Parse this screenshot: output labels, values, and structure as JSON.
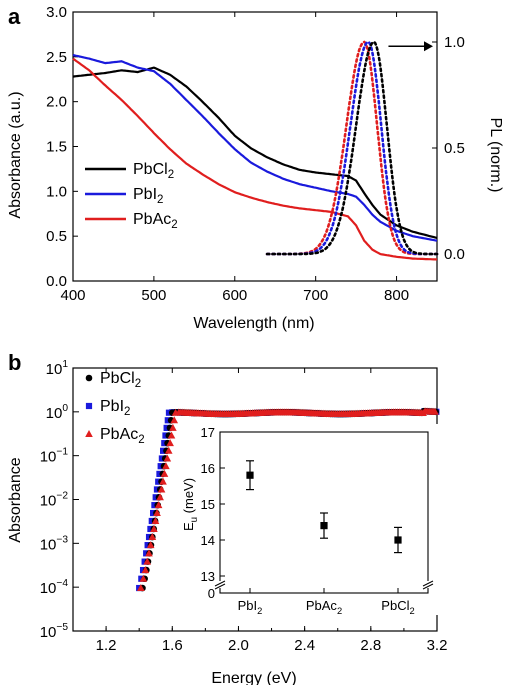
{
  "chart_data": [
    {
      "panel": "a",
      "type": "line",
      "xlabel": "Wavelength (nm)",
      "ylabel": "Absorbance (a.u.)",
      "y2label": "PL (norm.)",
      "xlim": [
        400,
        850
      ],
      "ylim": [
        0,
        3.0
      ],
      "y2lim": [
        0,
        1.0
      ],
      "xticks": [
        "400",
        "500",
        "600",
        "700",
        "800"
      ],
      "yticks": [
        "0.0",
        "0.5",
        "1.0",
        "1.5",
        "2.0",
        "2.5",
        "3.0"
      ],
      "y2ticks": [
        "0.0",
        "0.5",
        "1.0"
      ],
      "legend": [
        "PbCl2",
        "PbI2",
        "PbAc2"
      ],
      "legend_placement": "center-left",
      "colors": {
        "PbCl2": "#000000",
        "PbI2": "#1a1adc",
        "PbAc2": "#e01e1e"
      },
      "absorbance": [
        {
          "name": "PbCl2",
          "x": [
            400,
            420,
            440,
            460,
            480,
            500,
            520,
            540,
            560,
            580,
            600,
            620,
            640,
            660,
            680,
            700,
            720,
            740,
            750,
            760,
            770,
            780,
            800,
            820,
            850
          ],
          "y": [
            2.28,
            2.3,
            2.32,
            2.35,
            2.33,
            2.38,
            2.3,
            2.17,
            2.0,
            1.82,
            1.62,
            1.48,
            1.38,
            1.3,
            1.24,
            1.21,
            1.19,
            1.17,
            1.12,
            0.98,
            0.85,
            0.74,
            0.62,
            0.55,
            0.48
          ]
        },
        {
          "name": "PbI2",
          "x": [
            400,
            420,
            440,
            460,
            480,
            500,
            520,
            540,
            560,
            580,
            600,
            620,
            640,
            660,
            680,
            700,
            720,
            740,
            750,
            760,
            770,
            780,
            800,
            820,
            850
          ],
          "y": [
            2.52,
            2.48,
            2.43,
            2.45,
            2.38,
            2.34,
            2.2,
            2.02,
            1.84,
            1.65,
            1.47,
            1.32,
            1.22,
            1.14,
            1.08,
            1.04,
            1.0,
            0.97,
            0.94,
            0.85,
            0.74,
            0.66,
            0.56,
            0.5,
            0.45
          ]
        },
        {
          "name": "PbAc2",
          "x": [
            400,
            420,
            440,
            460,
            480,
            500,
            520,
            540,
            560,
            580,
            600,
            620,
            640,
            660,
            680,
            700,
            720,
            740,
            750,
            760,
            770,
            780,
            800,
            820,
            850
          ],
          "y": [
            2.48,
            2.35,
            2.18,
            2.02,
            1.84,
            1.65,
            1.47,
            1.31,
            1.19,
            1.08,
            0.99,
            0.93,
            0.88,
            0.84,
            0.81,
            0.79,
            0.77,
            0.72,
            0.62,
            0.45,
            0.35,
            0.3,
            0.27,
            0.25,
            0.24
          ]
        }
      ],
      "pl": [
        {
          "name": "PbAc2",
          "peak_nm": 760
        },
        {
          "name": "PbI2",
          "peak_nm": 765
        },
        {
          "name": "PbCl2",
          "peak_nm": 772
        }
      ]
    },
    {
      "panel": "b",
      "type": "scatter",
      "xlabel": "Energy (eV)",
      "ylabel": "Absorbance",
      "xlim": [
        1.0,
        3.2
      ],
      "ylim_log10": [
        -5,
        1
      ],
      "xticks": [
        "1.2",
        "1.6",
        "2.0",
        "2.4",
        "2.8",
        "3.2"
      ],
      "yticks": [
        "10^1",
        "10^0",
        "10^-1",
        "10^-2",
        "10^-3",
        "10^-4",
        "10^-5"
      ],
      "legend": [
        "PbCl2",
        "PbI2",
        "PbAc2"
      ],
      "legend_placement": "top-left",
      "colors": {
        "PbCl2": "#000000",
        "PbI2": "#1a1adc",
        "PbAc2": "#e01e1e"
      },
      "edges": [
        {
          "name": "PbI2",
          "onset_eV": 1.4,
          "knee_eV": 1.58
        },
        {
          "name": "PbCl2",
          "onset_eV": 1.42,
          "knee_eV": 1.6
        },
        {
          "name": "PbAc2",
          "onset_eV": 1.41,
          "knee_eV": 1.62
        }
      ],
      "inset": {
        "type": "scatter",
        "ylabel": "Eu (meV)",
        "categories": [
          "PbI2",
          "PbAc2",
          "PbCl2"
        ],
        "values": [
          15.8,
          14.4,
          14.0
        ],
        "errors": [
          0.4,
          0.35,
          0.35
        ],
        "ylim": [
          13,
          17
        ],
        "yticks": [
          "0",
          "13",
          "14",
          "15",
          "16",
          "17"
        ],
        "axis_break": true
      }
    }
  ]
}
